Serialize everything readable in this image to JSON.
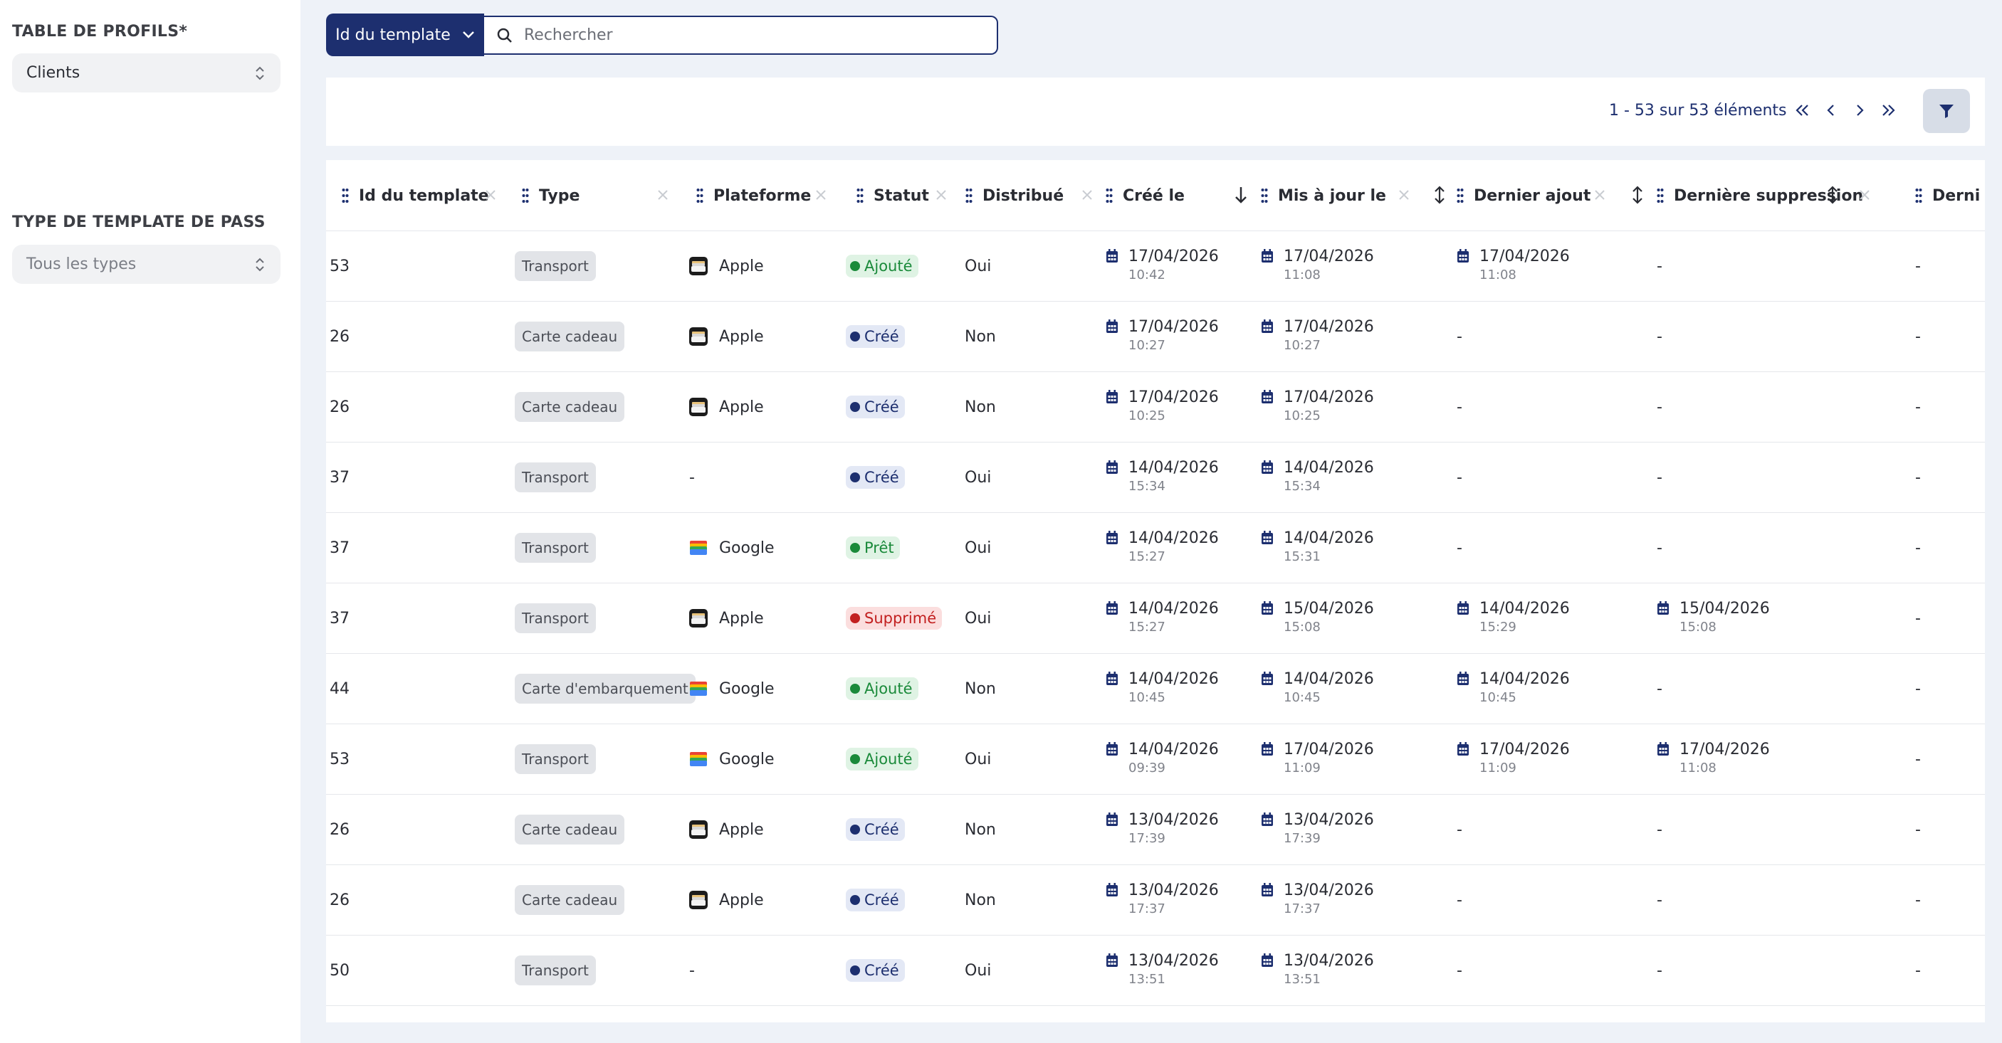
{
  "sidebar": {
    "profiles_label": "TABLE DE PROFILS*",
    "profiles_value": "Clients",
    "type_label": "TYPE DE TEMPLATE DE PASS",
    "type_value": "Tous les types"
  },
  "search": {
    "field_label": "Id du template",
    "placeholder": "Rechercher"
  },
  "pagination": {
    "summary": "1 - 53 sur 53 éléments"
  },
  "columns": [
    "Id du template",
    "Type",
    "Plateforme",
    "Statut",
    "Distribué",
    "Créé le",
    "Mis à jour le",
    "Dernier ajout",
    "Dernière suppression",
    "Derni"
  ],
  "rows": [
    {
      "id": "53",
      "type": "Transport",
      "platform": "Apple",
      "platform_icon": "apple-wallet-icon",
      "status": "Ajouté",
      "status_color": "green",
      "distributed": "Oui",
      "created": {
        "d": "17/04/2026",
        "t": "10:42"
      },
      "updated": {
        "d": "17/04/2026",
        "t": "11:08"
      },
      "last_add": {
        "d": "17/04/2026",
        "t": "11:08"
      },
      "last_del": "-",
      "last": "-"
    },
    {
      "id": "26",
      "type": "Carte cadeau",
      "platform": "Apple",
      "platform_icon": "apple-wallet-icon",
      "status": "Créé",
      "status_color": "blue",
      "distributed": "Non",
      "created": {
        "d": "17/04/2026",
        "t": "10:27"
      },
      "updated": {
        "d": "17/04/2026",
        "t": "10:27"
      },
      "last_add": "-",
      "last_del": "-",
      "last": "-"
    },
    {
      "id": "26",
      "type": "Carte cadeau",
      "platform": "Apple",
      "platform_icon": "apple-wallet-icon",
      "status": "Créé",
      "status_color": "blue",
      "distributed": "Non",
      "created": {
        "d": "17/04/2026",
        "t": "10:25"
      },
      "updated": {
        "d": "17/04/2026",
        "t": "10:25"
      },
      "last_add": "-",
      "last_del": "-",
      "last": "-"
    },
    {
      "id": "37",
      "type": "Transport",
      "platform": "-",
      "platform_icon": "",
      "status": "Créé",
      "status_color": "blue",
      "distributed": "Oui",
      "created": {
        "d": "14/04/2026",
        "t": "15:34"
      },
      "updated": {
        "d": "14/04/2026",
        "t": "15:34"
      },
      "last_add": "-",
      "last_del": "-",
      "last": "-"
    },
    {
      "id": "37",
      "type": "Transport",
      "platform": "Google",
      "platform_icon": "google-wallet-icon",
      "status": "Prêt",
      "status_color": "green",
      "distributed": "Oui",
      "created": {
        "d": "14/04/2026",
        "t": "15:27"
      },
      "updated": {
        "d": "14/04/2026",
        "t": "15:31"
      },
      "last_add": "-",
      "last_del": "-",
      "last": "-"
    },
    {
      "id": "37",
      "type": "Transport",
      "platform": "Apple",
      "platform_icon": "apple-wallet-icon",
      "status": "Supprimé",
      "status_color": "red",
      "distributed": "Oui",
      "created": {
        "d": "14/04/2026",
        "t": "15:27"
      },
      "updated": {
        "d": "15/04/2026",
        "t": "15:08"
      },
      "last_add": {
        "d": "14/04/2026",
        "t": "15:29"
      },
      "last_del": {
        "d": "15/04/2026",
        "t": "15:08"
      },
      "last": "-"
    },
    {
      "id": "44",
      "type": "Carte d'embarquement",
      "platform": "Google",
      "platform_icon": "google-wallet-icon",
      "status": "Ajouté",
      "status_color": "green",
      "distributed": "Non",
      "created": {
        "d": "14/04/2026",
        "t": "10:45"
      },
      "updated": {
        "d": "14/04/2026",
        "t": "10:45"
      },
      "last_add": {
        "d": "14/04/2026",
        "t": "10:45"
      },
      "last_del": "-",
      "last": "-"
    },
    {
      "id": "53",
      "type": "Transport",
      "platform": "Google",
      "platform_icon": "google-wallet-icon",
      "status": "Ajouté",
      "status_color": "green",
      "distributed": "Oui",
      "created": {
        "d": "14/04/2026",
        "t": "09:39"
      },
      "updated": {
        "d": "17/04/2026",
        "t": "11:09"
      },
      "last_add": {
        "d": "17/04/2026",
        "t": "11:09"
      },
      "last_del": {
        "d": "17/04/2026",
        "t": "11:08"
      },
      "last": "-"
    },
    {
      "id": "26",
      "type": "Carte cadeau",
      "platform": "Apple",
      "platform_icon": "apple-wallet-icon",
      "status": "Créé",
      "status_color": "blue",
      "distributed": "Non",
      "created": {
        "d": "13/04/2026",
        "t": "17:39"
      },
      "updated": {
        "d": "13/04/2026",
        "t": "17:39"
      },
      "last_add": "-",
      "last_del": "-",
      "last": "-"
    },
    {
      "id": "26",
      "type": "Carte cadeau",
      "platform": "Apple",
      "platform_icon": "apple-wallet-icon",
      "status": "Créé",
      "status_color": "blue",
      "distributed": "Non",
      "created": {
        "d": "13/04/2026",
        "t": "17:37"
      },
      "updated": {
        "d": "13/04/2026",
        "t": "17:37"
      },
      "last_add": "-",
      "last_del": "-",
      "last": "-"
    },
    {
      "id": "50",
      "type": "Transport",
      "platform": "-",
      "platform_icon": "",
      "status": "Créé",
      "status_color": "blue",
      "distributed": "Oui",
      "created": {
        "d": "13/04/2026",
        "t": "13:51"
      },
      "updated": {
        "d": "13/04/2026",
        "t": "13:51"
      },
      "last_add": "-",
      "last_del": "-",
      "last": "-"
    }
  ]
}
